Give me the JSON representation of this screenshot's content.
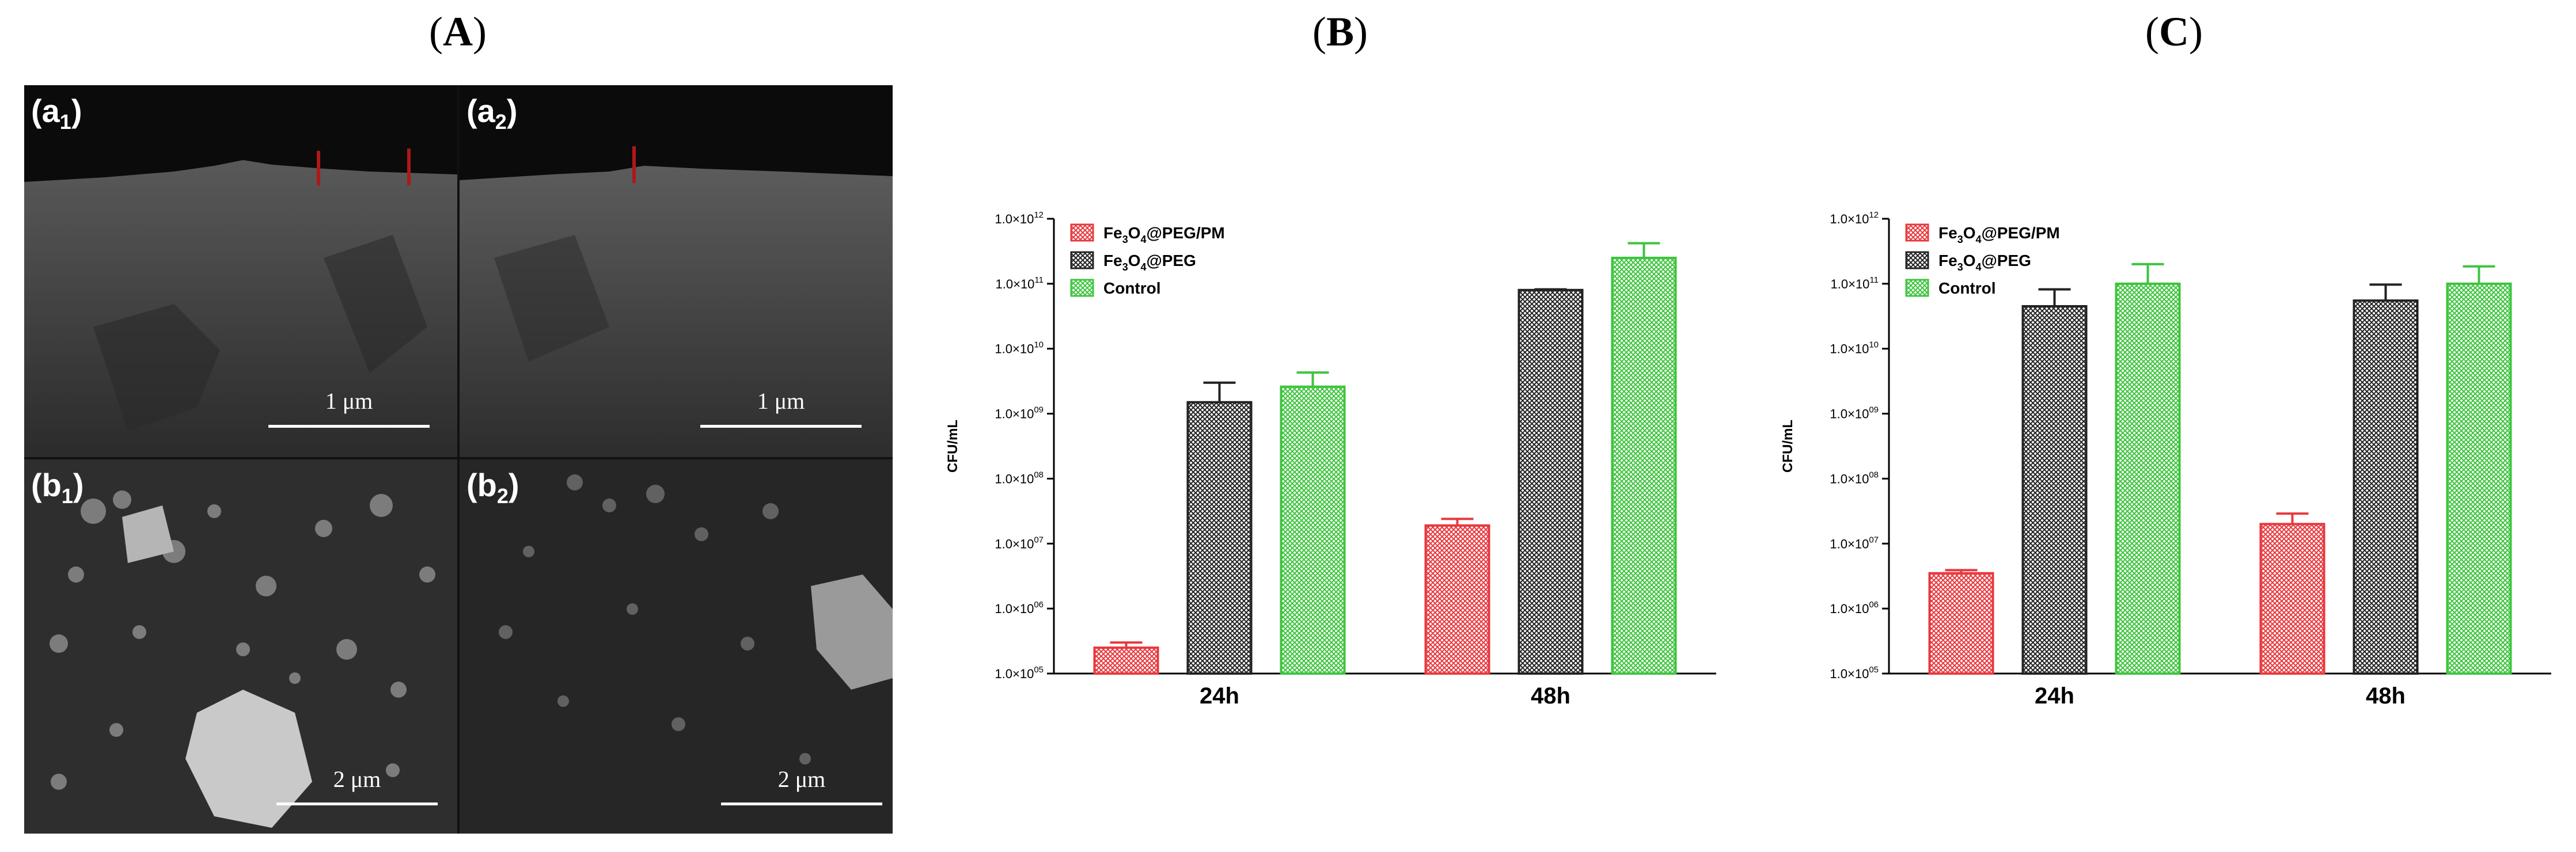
{
  "panels": {
    "A": {
      "letter": "A",
      "open": "(",
      "close": ")"
    },
    "B": {
      "letter": "B",
      "open": "(",
      "close": ")"
    },
    "C": {
      "letter": "C",
      "open": "(",
      "close": ")"
    }
  },
  "sem_images": [
    {
      "label_main": "(a",
      "label_sub": "1",
      "label_end": ")",
      "scale": "1 μm"
    },
    {
      "label_main": "(a",
      "label_sub": "2",
      "label_end": ")",
      "scale": "1 μm"
    },
    {
      "label_main": "(b",
      "label_sub": "1",
      "label_end": ")",
      "scale": "2 μm"
    },
    {
      "label_main": "(b",
      "label_sub": "2",
      "label_end": ")",
      "scale": "2 μm"
    }
  ],
  "colors": {
    "fe3o4_peg_pm": "#e8383d",
    "fe3o4_peg": "#222222",
    "control": "#3ec43e"
  },
  "chart_data": [
    {
      "type": "bar",
      "panel": "B",
      "ylabel": "CFU/mL",
      "yscale": "log",
      "ylim": [
        100000,
        1000000000000
      ],
      "ytick_labels": [
        "1.0×10",
        "1.0×10",
        "1.0×10",
        "1.0×10",
        "1.0×10",
        "1.0×10",
        "1.0×10",
        "1.0×10"
      ],
      "ytick_exponents": [
        "05",
        "06",
        "07",
        "08",
        "09",
        "10",
        "11",
        "12"
      ],
      "categories": [
        "24h",
        "48h"
      ],
      "series": [
        {
          "name": "Fe3O4@PEG/PM",
          "legend": [
            "Fe",
            "3",
            "O",
            "4",
            "@PEG/PM"
          ],
          "values": [
            250000,
            19000000
          ],
          "errors": [
            300000,
            24000000
          ]
        },
        {
          "name": "Fe3O4@PEG",
          "legend": [
            "Fe",
            "3",
            "O",
            "4",
            "@PEG"
          ],
          "values": [
            1500000000,
            80000000000
          ],
          "errors": [
            3000000000,
            82000000000
          ]
        },
        {
          "name": "Control",
          "legend": [
            "Control"
          ],
          "values": [
            2600000000,
            250000000000
          ],
          "errors": [
            4300000000,
            420000000000
          ]
        }
      ]
    },
    {
      "type": "bar",
      "panel": "C",
      "ylabel": "CFU/mL",
      "yscale": "log",
      "ylim": [
        100000,
        1000000000000
      ],
      "ytick_labels": [
        "1.0×10",
        "1.0×10",
        "1.0×10",
        "1.0×10",
        "1.0×10",
        "1.0×10",
        "1.0×10",
        "1.0×10"
      ],
      "ytick_exponents": [
        "05",
        "06",
        "07",
        "08",
        "09",
        "10",
        "11",
        "12"
      ],
      "categories": [
        "24h",
        "48h"
      ],
      "series": [
        {
          "name": "Fe3O4@PEG/PM",
          "legend": [
            "Fe",
            "3",
            "O",
            "4",
            "@PEG/PM"
          ],
          "values": [
            3500000,
            20000000
          ],
          "errors": [
            3900000,
            29000000
          ]
        },
        {
          "name": "Fe3O4@PEG",
          "legend": [
            "Fe",
            "3",
            "O",
            "4",
            "@PEG"
          ],
          "values": [
            45000000000,
            55000000000
          ],
          "errors": [
            82000000000,
            97000000000
          ]
        },
        {
          "name": "Control",
          "legend": [
            "Control"
          ],
          "values": [
            100000000000,
            100000000000
          ],
          "errors": [
            200000000000,
            185000000000
          ]
        }
      ]
    }
  ]
}
